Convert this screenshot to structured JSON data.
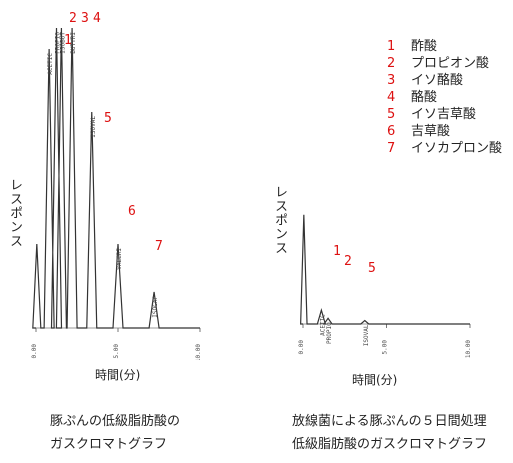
{
  "chart_data": [
    {
      "type": "line",
      "ylabel": "レスポンス",
      "xlabel": "時間(分)",
      "caption": [
        "豚ぷんの低級脂肪酸の",
        "ガスクロマトグラフ"
      ],
      "xlim": [
        0,
        10
      ],
      "x_ticks": [
        "0.00",
        "5.00",
        "10.00"
      ],
      "peaks": [
        {
          "id": "1",
          "x": 0.8,
          "height": 0.93,
          "label": "ACETIC"
        },
        {
          "id": "2",
          "x": 1.25,
          "height": 1.0,
          "label": "PROPIO"
        },
        {
          "id": "3",
          "x": 1.55,
          "height": 1.0,
          "label": "ISOBUT"
        },
        {
          "id": "4",
          "x": 2.2,
          "height": 1.0,
          "label": "BUTYRI"
        },
        {
          "id": "5",
          "x": 3.4,
          "height": 0.72,
          "label": "ISOVAL"
        },
        {
          "id": "6",
          "x": 5.0,
          "height": 0.28,
          "label": "VALERI"
        },
        {
          "id": "7",
          "x": 7.2,
          "height": 0.12,
          "label": "ISOCAP"
        }
      ],
      "solvent_peak": {
        "x": 0.05,
        "height": 0.28
      }
    },
    {
      "type": "line",
      "ylabel": "レスポンス",
      "xlabel": "時間(分)",
      "caption": [
        "放線菌による豚ぷんの５日間処理",
        "低級脂肪酸のガスクロマトグラフ"
      ],
      "xlim": [
        0,
        10
      ],
      "x_ticks": [
        "0.00",
        "5.00",
        "10.00"
      ],
      "peaks": [
        {
          "id": "1",
          "x": 1.1,
          "height": 0.12,
          "label": "ACETIC"
        },
        {
          "id": "2",
          "x": 1.5,
          "height": 0.05,
          "label": "PROPIO"
        },
        {
          "id": "5",
          "x": 3.7,
          "height": 0.03,
          "label": "ISOVAL"
        }
      ],
      "solvent_peak": {
        "x": 0.05,
        "height": 0.95
      }
    }
  ],
  "legend": [
    {
      "num": "1",
      "label": "酢酸"
    },
    {
      "num": "2",
      "label": "プロピオン酸"
    },
    {
      "num": "3",
      "label": "イソ酪酸"
    },
    {
      "num": "4",
      "label": "酪酸"
    },
    {
      "num": "5",
      "label": "イソ吉草酸"
    },
    {
      "num": "6",
      "label": "吉草酸"
    },
    {
      "num": "7",
      "label": "イソカプロン酸"
    }
  ],
  "colors": {
    "trace": "#333333",
    "peak_number": "#dd1111"
  }
}
